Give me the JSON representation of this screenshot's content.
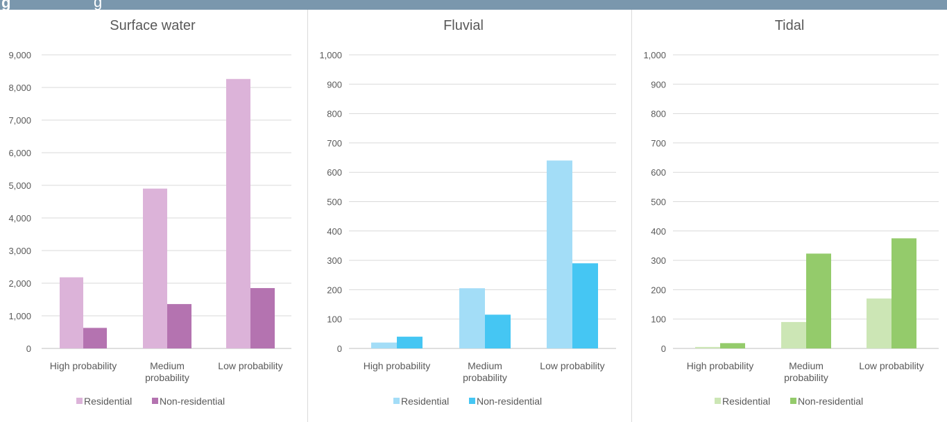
{
  "header": {
    "glyph": "g",
    "text": "g"
  },
  "chart_data": [
    {
      "type": "bar",
      "title": "Surface water",
      "categories": [
        "High probability",
        "Medium probability",
        "Low probability"
      ],
      "series": [
        {
          "name": "Residential",
          "values": [
            2180,
            4900,
            8260
          ],
          "color": "#dcb3d9"
        },
        {
          "name": "Non-residential",
          "values": [
            630,
            1360,
            1850
          ],
          "color": "#b473b0"
        }
      ],
      "ylim": [
        0,
        9000
      ],
      "yticks": [
        0,
        1000,
        2000,
        3000,
        4000,
        5000,
        6000,
        7000,
        8000,
        9000
      ],
      "ytick_labels": [
        "0",
        "1,000",
        "2,000",
        "3,000",
        "4,000",
        "5,000",
        "6,000",
        "7,000",
        "8,000",
        "9,000"
      ],
      "grid": true,
      "legend": "bottom"
    },
    {
      "type": "bar",
      "title": "Fluvial",
      "categories": [
        "High probability",
        "Medium probability",
        "Low probability"
      ],
      "series": [
        {
          "name": "Residential",
          "values": [
            20,
            205,
            640
          ],
          "color": "#a3ddf7"
        },
        {
          "name": "Non-residential",
          "values": [
            40,
            115,
            290
          ],
          "color": "#45c6f3"
        }
      ],
      "ylim": [
        0,
        1000
      ],
      "yticks": [
        0,
        100,
        200,
        300,
        400,
        500,
        600,
        700,
        800,
        900,
        1000
      ],
      "ytick_labels": [
        "0",
        "100",
        "200",
        "300",
        "400",
        "500",
        "600",
        "700",
        "800",
        "900",
        "1,000"
      ],
      "grid": true,
      "legend": "bottom"
    },
    {
      "type": "bar",
      "title": "Tidal",
      "categories": [
        "High probability",
        "Medium probability",
        "Low probability"
      ],
      "series": [
        {
          "name": "Residential",
          "values": [
            5,
            90,
            170
          ],
          "color": "#cce6b5"
        },
        {
          "name": "Non-residential",
          "values": [
            18,
            323,
            375
          ],
          "color": "#94cb6b"
        }
      ],
      "ylim": [
        0,
        1000
      ],
      "yticks": [
        0,
        100,
        200,
        300,
        400,
        500,
        600,
        700,
        800,
        900,
        1000
      ],
      "ytick_labels": [
        "0",
        "100",
        "200",
        "300",
        "400",
        "500",
        "600",
        "700",
        "800",
        "900",
        "1,000"
      ],
      "grid": true,
      "legend": "bottom"
    }
  ]
}
